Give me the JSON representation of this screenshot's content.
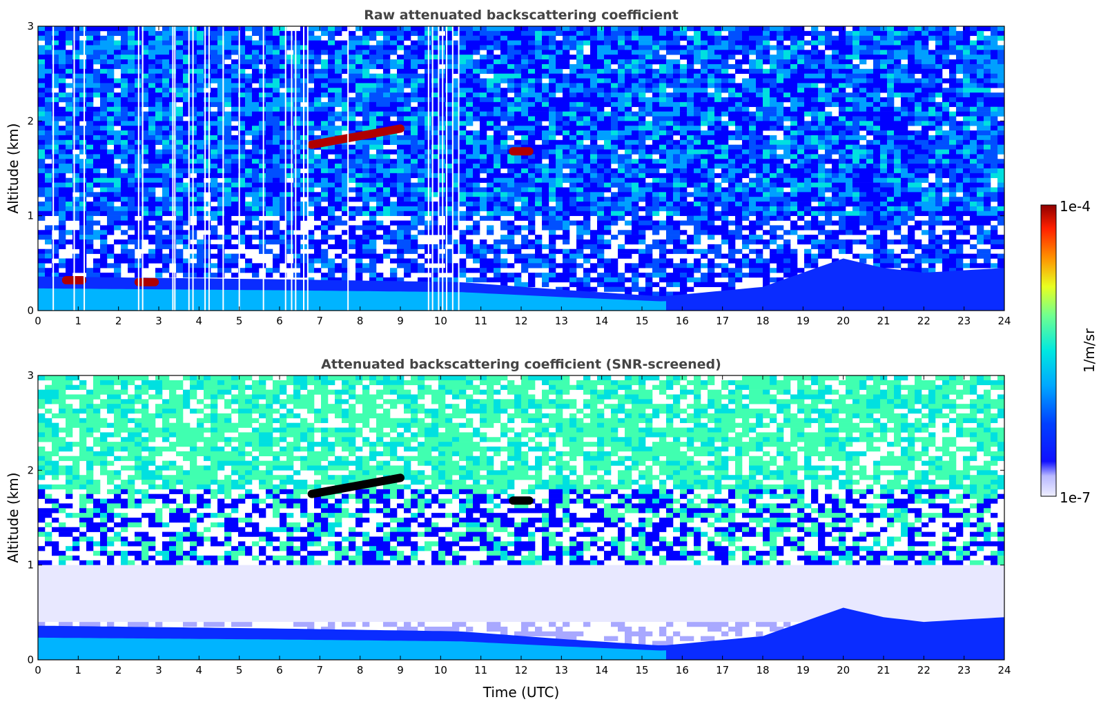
{
  "chart_data": [
    {
      "type": "heatmap",
      "title": "Raw attenuated backscattering coefficient",
      "xlabel": "",
      "ylabel": "Altitude (km)",
      "xlim": [
        0,
        24
      ],
      "ylim": [
        0,
        3
      ],
      "x_ticks": [
        "0",
        "1",
        "2",
        "3",
        "4",
        "5",
        "6",
        "7",
        "8",
        "9",
        "10",
        "11",
        "12",
        "13",
        "14",
        "15",
        "16",
        "17",
        "18",
        "19",
        "20",
        "21",
        "22",
        "23",
        "24"
      ],
      "y_ticks": [
        "0",
        "1",
        "2",
        "3"
      ],
      "color_scale": "log",
      "features": [
        {
          "kind": "boundary_layer",
          "x": [
            0,
            6,
            10.5,
            13,
            15.5,
            18,
            20,
            21,
            22,
            24
          ],
          "top_km": [
            0.36,
            0.33,
            0.3,
            0.22,
            0.15,
            0.25,
            0.55,
            0.45,
            0.4,
            0.45
          ]
        },
        {
          "kind": "cloud",
          "x": [
            6.8,
            9.0
          ],
          "altitude_km": [
            1.75,
            1.92
          ],
          "value": "1e-4"
        },
        {
          "kind": "cloud",
          "x": [
            11.8,
            12.2
          ],
          "altitude_km": [
            1.68,
            1.68
          ],
          "value": "1e-4"
        },
        {
          "kind": "cloud",
          "x": [
            0.7,
            1.1
          ],
          "altitude_km": [
            0.32,
            0.32
          ],
          "value": "1e-4"
        },
        {
          "kind": "cloud",
          "x": [
            2.5,
            2.9
          ],
          "altitude_km": [
            0.3,
            0.3
          ],
          "value": "1e-4"
        }
      ],
      "missing_profiles_x": [
        0.38,
        0.9,
        1.15,
        2.5,
        2.6,
        3.35,
        3.4,
        3.75,
        3.85,
        4.15,
        4.25,
        4.6,
        5.0,
        5.6,
        6.15,
        6.3,
        6.4,
        6.6,
        6.7,
        7.7,
        9.7,
        9.8,
        9.95,
        10.05,
        10.15,
        10.3,
        10.45
      ]
    },
    {
      "type": "heatmap",
      "title": "Attenuated backscattering coefficient (SNR-screened)",
      "xlabel": "Time (UTC)",
      "ylabel": "Altitude (km)",
      "xlim": [
        0,
        24
      ],
      "ylim": [
        0,
        3
      ],
      "x_ticks": [
        "0",
        "1",
        "2",
        "3",
        "4",
        "5",
        "6",
        "7",
        "8",
        "9",
        "10",
        "11",
        "12",
        "13",
        "14",
        "15",
        "16",
        "17",
        "18",
        "19",
        "20",
        "21",
        "22",
        "23",
        "24"
      ],
      "y_ticks": [
        "0",
        "1",
        "2",
        "3"
      ],
      "color_scale": "log",
      "features": [
        {
          "kind": "boundary_layer",
          "x": [
            0,
            6,
            10.5,
            13,
            15.5,
            18,
            20,
            21,
            22,
            24
          ],
          "top_km": [
            0.36,
            0.33,
            0.3,
            0.22,
            0.15,
            0.25,
            0.55,
            0.45,
            0.4,
            0.45
          ]
        },
        {
          "kind": "screened_layer",
          "bottom_km": 0.4,
          "top_km": 1.0
        },
        {
          "kind": "cloud",
          "x": [
            6.8,
            9.0
          ],
          "altitude_km": [
            1.75,
            1.92
          ],
          "value": "saturated"
        },
        {
          "kind": "cloud",
          "x": [
            11.8,
            12.2
          ],
          "altitude_km": [
            1.68,
            1.68
          ],
          "value": "saturated"
        }
      ]
    }
  ],
  "colorbar": {
    "label": "1/m/sr",
    "max_label": "1e-4",
    "min_label": "1e-7",
    "colors": [
      "#e8e8ff",
      "#c8c8ff",
      "#a8a8ff",
      "#0000ff",
      "#0050ff",
      "#00a0ff",
      "#00e0e0",
      "#40ffb0",
      "#a0ff60",
      "#ffff00",
      "#ffa000",
      "#ff3000",
      "#a00000"
    ]
  }
}
